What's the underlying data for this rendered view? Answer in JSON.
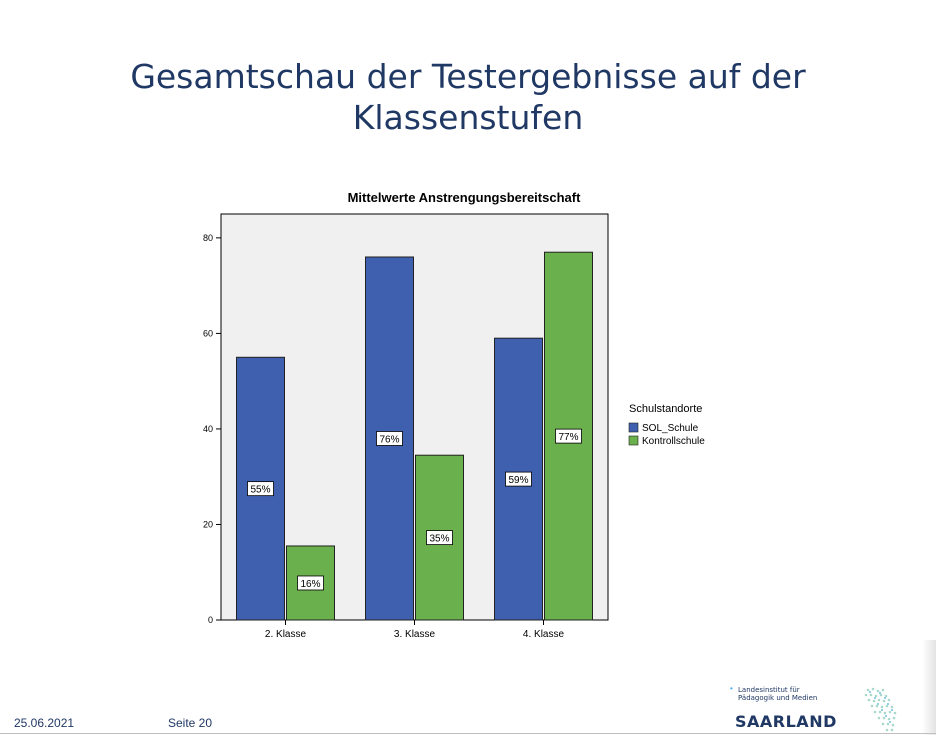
{
  "slide": {
    "title": "Gesamtschau  der Testergebnisse auf der\nKlassenstufen"
  },
  "footer": {
    "date": "25.06.2021",
    "page": "Seite 20"
  },
  "logo": {
    "org": "Landesinstitut für\nPädagogik und Medien",
    "name": "SAARLAND"
  },
  "chart_data": {
    "type": "bar",
    "title": "Mittelwerte Anstrengungsbereitschaft",
    "xlabel": "",
    "ylabel": "",
    "categories": [
      "2. Klasse",
      "3. Klasse",
      "4. Klasse"
    ],
    "ylim": [
      0,
      85
    ],
    "yticks": [
      0,
      20,
      40,
      60,
      80
    ],
    "grid": false,
    "legend": {
      "title": "Schulstandorte",
      "placement": "right"
    },
    "series": [
      {
        "name": "SOL_Schule",
        "color": "#3f5faf",
        "values": [
          55,
          76,
          59
        ],
        "labels": [
          "55%",
          "76%",
          "59%"
        ]
      },
      {
        "name": "Kontrollschule",
        "color": "#6ab04c",
        "values": [
          15.5,
          34.5,
          77
        ],
        "labels": [
          "16%",
          "35%",
          "77%"
        ]
      }
    ]
  }
}
